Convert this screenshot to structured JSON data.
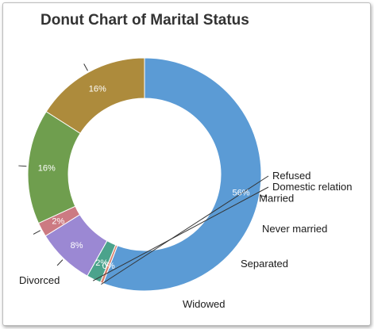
{
  "chart_data": {
    "type": "pie",
    "subtype": "donut",
    "title": "Donut Chart of Marital Status",
    "legend": "none",
    "slices": [
      {
        "label": "Married",
        "value": 56,
        "pct_label": "56%",
        "color": "#5b9bd5"
      },
      {
        "label": "Refused",
        "value": 0.4,
        "pct_label": "0%",
        "color": "#d9826f"
      },
      {
        "label": "Domestic relation",
        "value": 2,
        "pct_label": "2%",
        "color": "#4ba38c"
      },
      {
        "label": "Never married",
        "value": 8,
        "pct_label": "8%",
        "color": "#9b88d3"
      },
      {
        "label": "Separated",
        "value": 2,
        "pct_label": "2%",
        "color": "#cc7a82"
      },
      {
        "label": "Widowed",
        "value": 16,
        "pct_label": "16%",
        "color": "#6f9e4e"
      },
      {
        "label": "Divorced",
        "value": 16,
        "pct_label": "16%",
        "color": "#ad8b3c"
      }
    ]
  }
}
